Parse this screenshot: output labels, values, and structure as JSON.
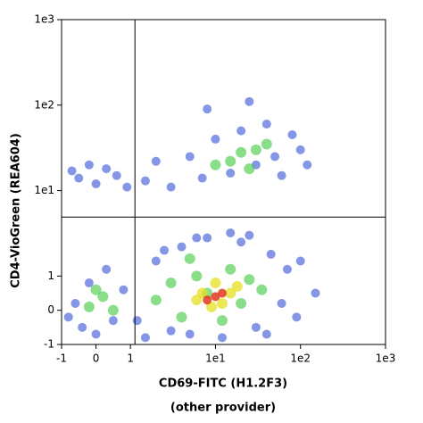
{
  "chart_data": {
    "type": "scatter",
    "scale": "biexponential",
    "x_label": "CD69-FITC (H1.2F3)",
    "x_sublabel": "(other provider)",
    "y_label": "CD4-VioGreen (REA604)",
    "xlim": [
      -1,
      1000
    ],
    "ylim": [
      -1,
      1000
    ],
    "xticks": [
      -1,
      0,
      1,
      {
        "value": 10,
        "label": "1e1"
      },
      {
        "value": 100,
        "label": "1e2"
      },
      {
        "value": 1000,
        "label": "1e3"
      }
    ],
    "yticks": [
      -1,
      0,
      1,
      {
        "value": 10,
        "label": "1e1"
      },
      {
        "value": 100,
        "label": "1e2"
      },
      {
        "value": 1000,
        "label": "1e3"
      }
    ],
    "quadrant_x": 1.13,
    "quadrant_y": 4.9,
    "series": [
      {
        "color": "#1f3fd0",
        "x": [
          -0.6,
          -0.4,
          -0.2,
          0,
          0.3,
          0.5,
          0.8,
          1.5,
          2,
          3,
          4,
          5,
          8,
          12,
          20,
          30,
          45,
          60,
          70,
          90,
          150,
          25,
          15,
          6,
          2.5,
          1.2,
          -0.8,
          40,
          100,
          -0.5,
          -0.2,
          0,
          0.3,
          0.6,
          1.5,
          2,
          3,
          5,
          7,
          10,
          15,
          20,
          30,
          40,
          50,
          80,
          100,
          60,
          8,
          25,
          120,
          0.9,
          -0.7
        ],
        "y": [
          0.2,
          -0.5,
          0.8,
          -0.7,
          1.2,
          -0.3,
          0.6,
          -0.8,
          1.5,
          -0.6,
          2.2,
          -0.7,
          2.8,
          -0.8,
          2.5,
          -0.5,
          1.8,
          0.2,
          1.2,
          -0.2,
          0.5,
          3,
          3.2,
          2.8,
          2,
          -0.3,
          -0.2,
          -0.7,
          1.5,
          14,
          20,
          12,
          18,
          15,
          13,
          22,
          11,
          25,
          14,
          40,
          16,
          50,
          20,
          60,
          25,
          45,
          30,
          15,
          90,
          110,
          20,
          11,
          17
        ]
      },
      {
        "color": "#3cc83c",
        "x": [
          -0.2,
          0.2,
          0.5,
          2,
          3,
          4,
          6,
          8,
          15,
          20,
          25,
          35,
          12,
          5,
          0,
          15,
          20,
          30,
          10,
          40,
          25
        ],
        "y": [
          0.1,
          0.4,
          0,
          0.3,
          0.8,
          -0.2,
          1,
          0.5,
          1.2,
          0.2,
          0.9,
          0.6,
          -0.3,
          1.6,
          0.6,
          22,
          28,
          30,
          20,
          35,
          18
        ]
      },
      {
        "color": "#e6e020",
        "x": [
          7,
          10,
          12,
          15,
          9,
          6,
          18
        ],
        "y": [
          0.5,
          0.8,
          0.2,
          0.5,
          0.1,
          0.3,
          0.7
        ]
      },
      {
        "color": "#e03a1c",
        "x": [
          10,
          12,
          8
        ],
        "y": [
          0.4,
          0.5,
          0.3
        ]
      }
    ]
  }
}
